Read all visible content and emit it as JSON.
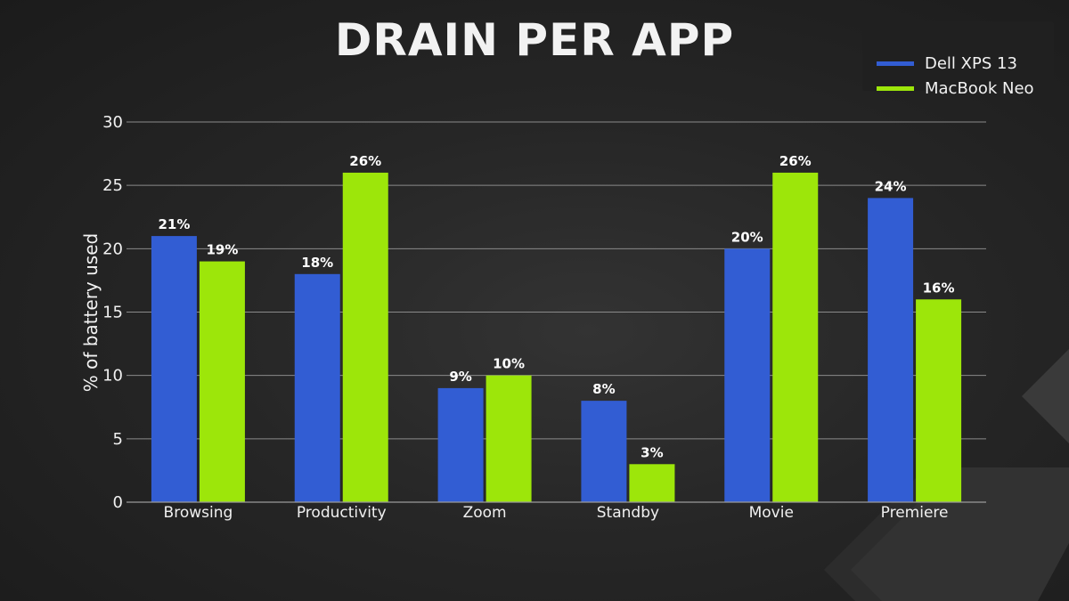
{
  "chart_data": {
    "type": "bar",
    "title": "DRAIN PER APP",
    "xlabel": "",
    "ylabel": "% of battery used",
    "ylim": [
      0,
      30
    ],
    "yticks": [
      0,
      5,
      10,
      15,
      20,
      25,
      30
    ],
    "grid": true,
    "legend_position": "top-right",
    "categories": [
      "Browsing",
      "Productivity",
      "Zoom",
      "Standby",
      "Movie",
      "Premiere"
    ],
    "series": [
      {
        "name": "Dell XPS 13",
        "color": "#325dd3",
        "values": [
          21,
          18,
          9,
          8,
          20,
          24
        ],
        "labels": [
          "21%",
          "18%",
          "9%",
          "8%",
          "20%",
          "24%"
        ]
      },
      {
        "name": "MacBook Neo",
        "color": "#9de60a",
        "values": [
          19,
          26,
          10,
          3,
          26,
          16
        ],
        "labels": [
          "19%",
          "26%",
          "10%",
          "3%",
          "26%",
          "16%"
        ]
      }
    ]
  }
}
